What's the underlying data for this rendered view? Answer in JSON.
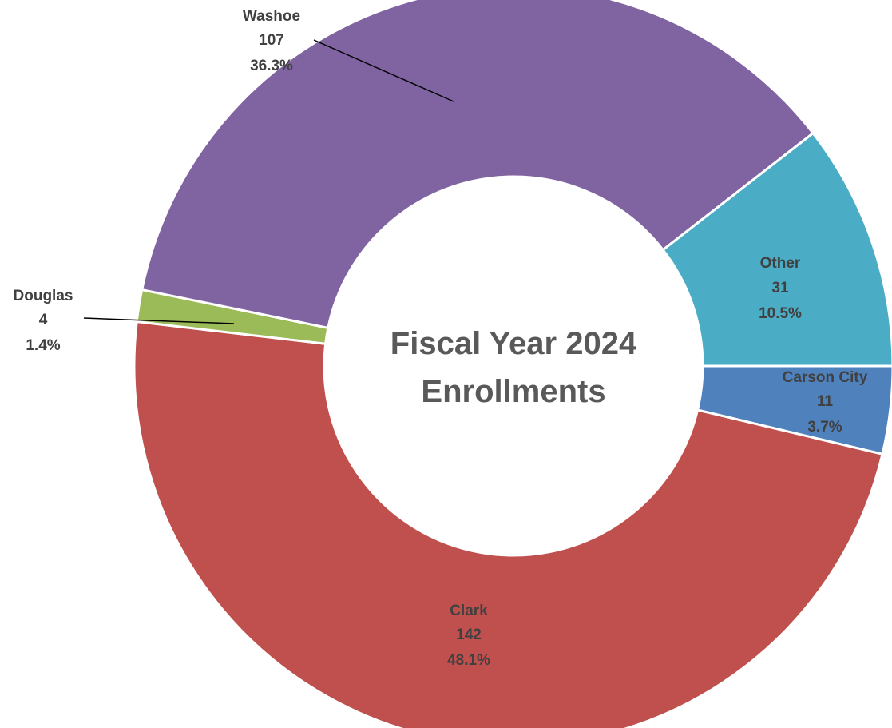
{
  "chart_data": {
    "type": "pie",
    "variant": "donut",
    "center_title_lines": [
      "Fiscal Year 2024",
      "Enrollments"
    ],
    "slices": [
      {
        "name": "Carson City",
        "value": 11,
        "percent_label": "3.7%",
        "color": "#4F81BD"
      },
      {
        "name": "Clark",
        "value": 142,
        "percent_label": "48.1%",
        "color": "#C0504D"
      },
      {
        "name": "Douglas",
        "value": 4,
        "percent_label": "1.4%",
        "color": "#9BBB59"
      },
      {
        "name": "Washoe",
        "value": 107,
        "percent_label": "36.3%",
        "color": "#8064A2"
      },
      {
        "name": "Other",
        "value": 31,
        "percent_label": "10.5%",
        "color": "#4BACC6"
      }
    ],
    "legend": "none"
  }
}
